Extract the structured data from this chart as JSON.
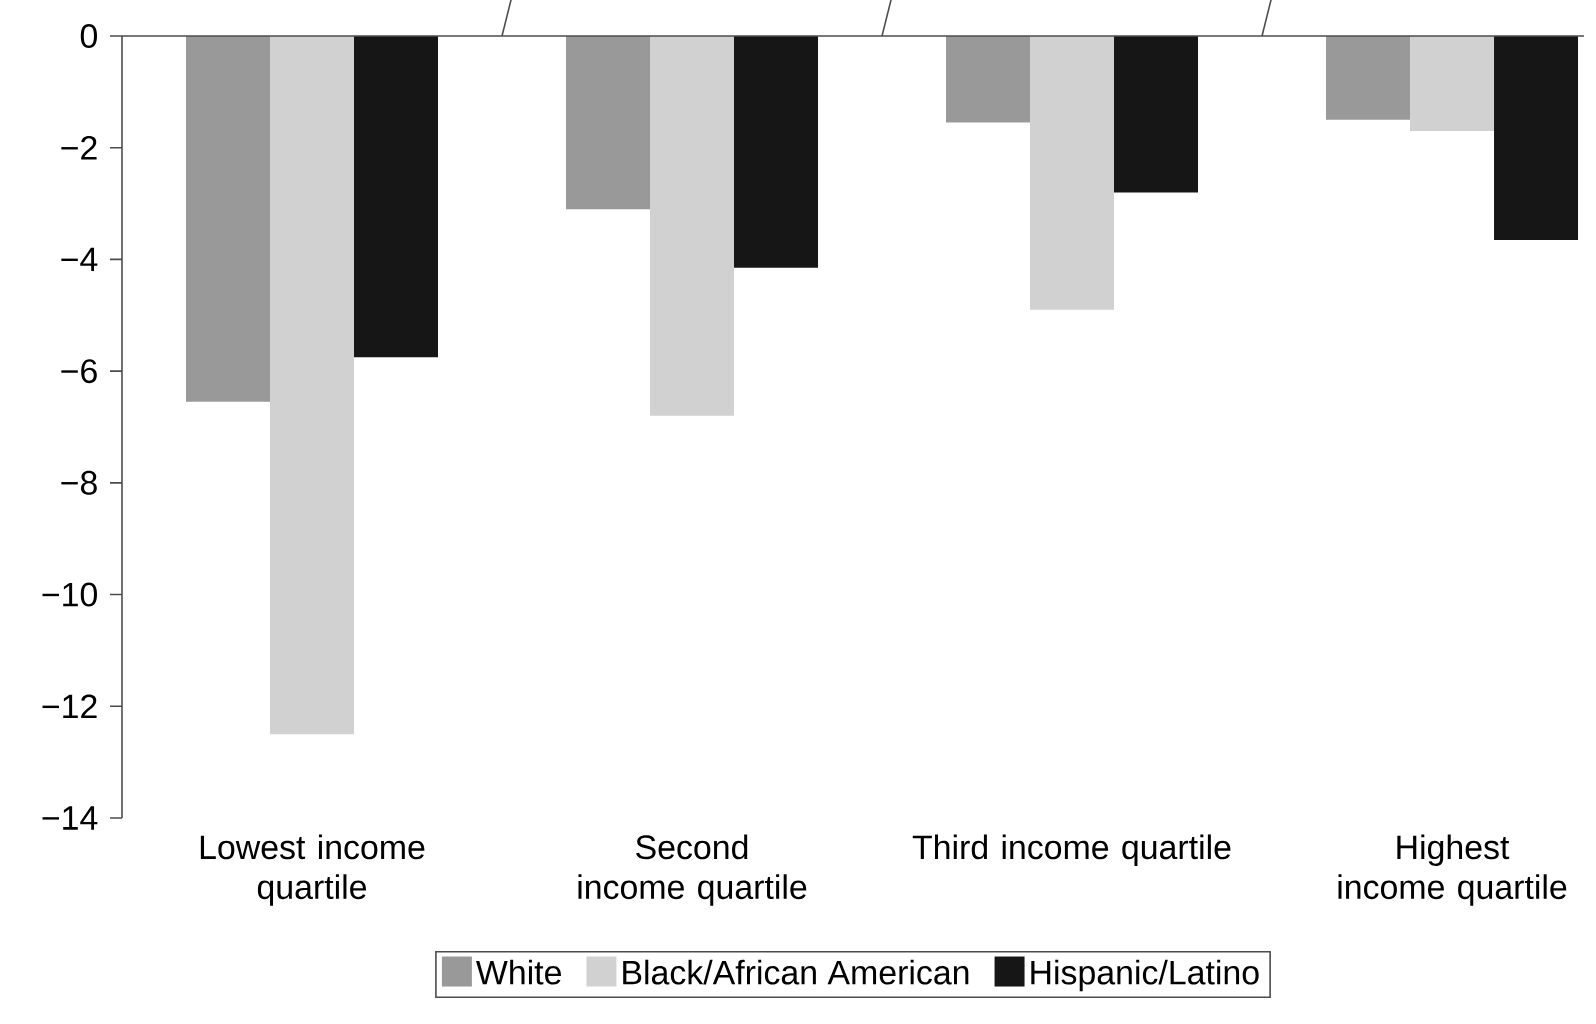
{
  "chart_data": {
    "type": "bar",
    "categories": [
      "Lowest income quartile",
      "Second income quartile",
      "Third income quartile",
      "Highest income quartile"
    ],
    "series": [
      {
        "name": "White",
        "color": "#999999",
        "values": [
          -6.55,
          -3.1,
          -1.55,
          -1.5
        ]
      },
      {
        "name": "Black/African American",
        "color": "#d0d1d0",
        "values": [
          -12.5,
          -6.8,
          -4.9,
          -1.7
        ]
      },
      {
        "name": "Hispanic/Latino",
        "color": "#161616",
        "values": [
          -5.75,
          -4.15,
          -2.8,
          -3.65
        ]
      }
    ],
    "ylim": [
      -14,
      0
    ],
    "yticks": [
      {
        "value": -14,
        "label": "−14"
      },
      {
        "value": -12,
        "label": "−12"
      },
      {
        "value": -10,
        "label": "−10"
      },
      {
        "value": -8,
        "label": "−8"
      },
      {
        "value": -6,
        "label": "−6"
      },
      {
        "value": -4,
        "label": "−4"
      },
      {
        "value": -2,
        "label": "−2"
      },
      0
    ],
    "legend": "bottom",
    "grid": false
  }
}
